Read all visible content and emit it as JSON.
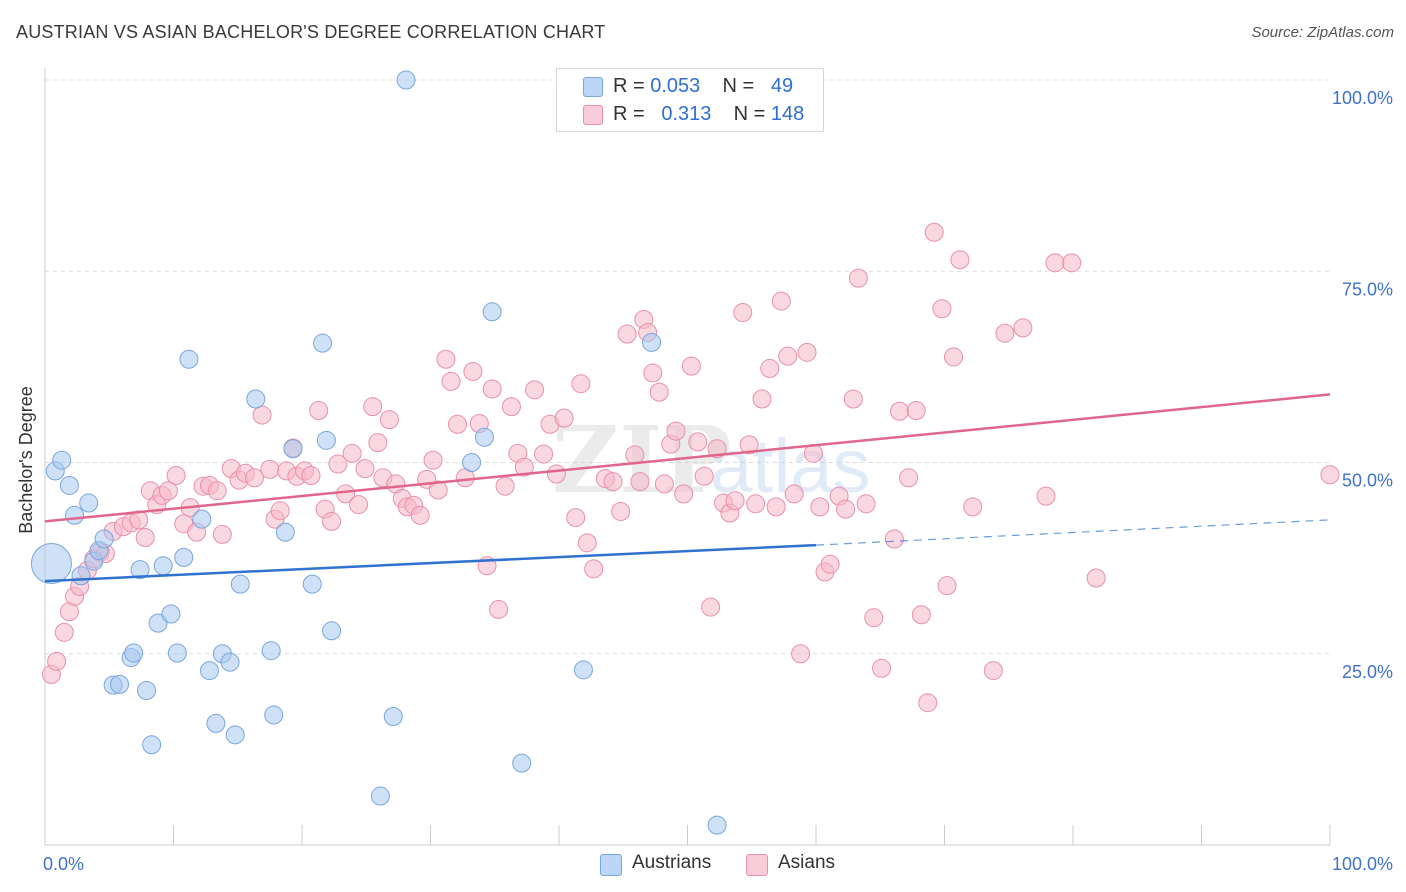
{
  "title": "AUSTRIAN VS ASIAN BACHELOR'S DEGREE CORRELATION CHART",
  "source": "Source: ZipAtlas.com",
  "legend": {
    "rows": [
      {
        "r_label": "R =",
        "r_value": "0.053",
        "n_label": "N =",
        "n_value": "49",
        "color": "#a8c8ef"
      },
      {
        "r_label": "R =",
        "r_value": "0.313",
        "n_label": "N =",
        "n_value": "148",
        "color": "#f5b8cb"
      }
    ]
  },
  "bottom_legend": [
    {
      "label": "Austrians",
      "color": "#a8c8ef"
    },
    {
      "label": "Asians",
      "color": "#f5b8cb"
    }
  ],
  "watermark": {
    "part1": "ZIP",
    "part2": "atlas"
  },
  "chart_data": {
    "type": "scatter",
    "xlabel": "",
    "ylabel": "Bachelor's Degree",
    "xlim": [
      0,
      100
    ],
    "ylim": [
      0,
      100
    ],
    "x_tick_labels": [
      "0.0%",
      "100.0%"
    ],
    "y_ticks": [
      25,
      50,
      75,
      100
    ],
    "y_tick_labels": [
      "25.0%",
      "50.0%",
      "75.0%",
      "100.0%"
    ],
    "grid": true,
    "series": [
      {
        "name": "Austrians",
        "color": "#a8c8ef",
        "stroke": "#7aa6dd",
        "trend": {
          "x0": 0,
          "y0": 34.5,
          "x1": 60,
          "y1": 39.2,
          "dash_to_x": 100,
          "dash_to_y": 42.5,
          "color": "#2f72d0"
        },
        "points": [
          [
            0.5,
            36.8
          ],
          [
            0.8,
            48.9
          ],
          [
            1.3,
            50.3
          ],
          [
            1.9,
            47
          ],
          [
            2.3,
            43.1
          ],
          [
            2.8,
            35.2
          ],
          [
            3.4,
            44.7
          ],
          [
            3.8,
            37.1
          ],
          [
            4.2,
            38.5
          ],
          [
            4.6,
            40
          ],
          [
            5.3,
            20.9
          ],
          [
            5.8,
            21
          ],
          [
            6.7,
            24.5
          ],
          [
            6.9,
            25.1
          ],
          [
            7.4,
            36
          ],
          [
            7.9,
            20.2
          ],
          [
            8.3,
            13.1
          ],
          [
            8.8,
            29
          ],
          [
            9.2,
            36.5
          ],
          [
            9.8,
            30.2
          ],
          [
            10.3,
            25.1
          ],
          [
            10.8,
            37.6
          ],
          [
            11.2,
            63.5
          ],
          [
            12.2,
            42.6
          ],
          [
            12.8,
            22.8
          ],
          [
            13.3,
            15.9
          ],
          [
            13.8,
            25
          ],
          [
            14.4,
            23.9
          ],
          [
            14.8,
            14.4
          ],
          [
            15.2,
            34.1
          ],
          [
            16.4,
            58.3
          ],
          [
            17.6,
            25.4
          ],
          [
            17.8,
            17
          ],
          [
            18.7,
            40.9
          ],
          [
            19.3,
            51.8
          ],
          [
            20.8,
            34.1
          ],
          [
            21.6,
            65.6
          ],
          [
            21.9,
            52.9
          ],
          [
            22.3,
            28
          ],
          [
            26.1,
            6.4
          ],
          [
            27.1,
            16.8
          ],
          [
            28.1,
            100
          ],
          [
            33.2,
            50
          ],
          [
            34.2,
            53.3
          ],
          [
            34.8,
            69.7
          ],
          [
            37.1,
            10.7
          ],
          [
            41.9,
            22.9
          ],
          [
            47.2,
            65.7
          ],
          [
            52.3,
            2.6
          ]
        ]
      },
      {
        "name": "Asians",
        "color": "#f5b8cb",
        "stroke": "#e890ab",
        "trend": {
          "x0": 0,
          "y0": 42.3,
          "x1": 100,
          "y1": 58.9,
          "color": "#e0668c"
        },
        "points": [
          [
            0.5,
            22.3
          ],
          [
            0.9,
            24
          ],
          [
            1.5,
            27.8
          ],
          [
            1.9,
            30.5
          ],
          [
            2.3,
            32.5
          ],
          [
            2.7,
            33.8
          ],
          [
            3.3,
            35.9
          ],
          [
            3.8,
            37.4
          ],
          [
            4.3,
            38.3
          ],
          [
            4.7,
            38.1
          ],
          [
            5.3,
            41
          ],
          [
            6.1,
            41.6
          ],
          [
            6.7,
            42.1
          ],
          [
            7.3,
            42.5
          ],
          [
            7.8,
            40.2
          ],
          [
            8.2,
            46.3
          ],
          [
            8.7,
            44.5
          ],
          [
            9.1,
            45.7
          ],
          [
            9.6,
            46.3
          ],
          [
            10.2,
            48.3
          ],
          [
            10.8,
            42
          ],
          [
            11.3,
            44.1
          ],
          [
            11.8,
            40.9
          ],
          [
            12.3,
            46.9
          ],
          [
            12.8,
            47
          ],
          [
            13.4,
            46.3
          ],
          [
            13.8,
            40.6
          ],
          [
            14.5,
            49.2
          ],
          [
            15.1,
            47.7
          ],
          [
            15.6,
            48.6
          ],
          [
            16.3,
            48
          ],
          [
            16.9,
            56.2
          ],
          [
            17.5,
            49.1
          ],
          [
            17.9,
            42.6
          ],
          [
            18.3,
            43.7
          ],
          [
            18.8,
            48.9
          ],
          [
            19.3,
            51.9
          ],
          [
            19.6,
            48.2
          ],
          [
            20.2,
            48.9
          ],
          [
            20.7,
            48.3
          ],
          [
            21.3,
            56.8
          ],
          [
            21.8,
            43.9
          ],
          [
            22.3,
            42.3
          ],
          [
            22.8,
            49.8
          ],
          [
            23.4,
            45.9
          ],
          [
            23.9,
            51.2
          ],
          [
            24.4,
            44.5
          ],
          [
            24.9,
            49.2
          ],
          [
            25.5,
            57.3
          ],
          [
            25.9,
            52.6
          ],
          [
            26.3,
            48
          ],
          [
            26.8,
            55.6
          ],
          [
            27.3,
            47.2
          ],
          [
            27.8,
            45.3
          ],
          [
            28.2,
            44.2
          ],
          [
            28.7,
            44.4
          ],
          [
            29.2,
            43.1
          ],
          [
            29.7,
            47.8
          ],
          [
            30.2,
            50.3
          ],
          [
            30.6,
            46.4
          ],
          [
            31.2,
            63.5
          ],
          [
            31.6,
            60.6
          ],
          [
            32.1,
            55
          ],
          [
            32.7,
            48
          ],
          [
            33.3,
            61.9
          ],
          [
            33.8,
            55.1
          ],
          [
            34.4,
            36.5
          ],
          [
            34.8,
            59.6
          ],
          [
            35.3,
            30.8
          ],
          [
            35.8,
            46.9
          ],
          [
            36.3,
            57.3
          ],
          [
            36.8,
            51.2
          ],
          [
            37.3,
            49.4
          ],
          [
            38.1,
            59.5
          ],
          [
            38.8,
            51.1
          ],
          [
            39.3,
            55
          ],
          [
            39.8,
            48.5
          ],
          [
            40.4,
            55.8
          ],
          [
            41.3,
            42.8
          ],
          [
            41.7,
            60.3
          ],
          [
            42.2,
            39.5
          ],
          [
            42.7,
            36.1
          ],
          [
            43.6,
            47.9
          ],
          [
            44.2,
            47.5
          ],
          [
            44.8,
            43.6
          ],
          [
            45.3,
            66.8
          ],
          [
            45.9,
            51
          ],
          [
            46.3,
            47.5
          ],
          [
            46.6,
            68.7
          ],
          [
            46.9,
            67
          ],
          [
            47.3,
            61.7
          ],
          [
            47.8,
            59.2
          ],
          [
            48.2,
            47.2
          ],
          [
            48.7,
            52.4
          ],
          [
            49.1,
            54.1
          ],
          [
            49.7,
            45.9
          ],
          [
            50.3,
            62.6
          ],
          [
            50.8,
            52.7
          ],
          [
            51.3,
            48.2
          ],
          [
            51.8,
            31.1
          ],
          [
            52.3,
            51.8
          ],
          [
            52.8,
            44.7
          ],
          [
            53.3,
            43.4
          ],
          [
            53.7,
            45
          ],
          [
            54.3,
            69.6
          ],
          [
            54.8,
            52.3
          ],
          [
            55.3,
            44.6
          ],
          [
            55.8,
            58.3
          ],
          [
            56.4,
            62.3
          ],
          [
            56.9,
            44.2
          ],
          [
            57.3,
            71.1
          ],
          [
            57.8,
            63.9
          ],
          [
            58.3,
            45.9
          ],
          [
            58.8,
            25
          ],
          [
            59.3,
            64.4
          ],
          [
            59.8,
            51.2
          ],
          [
            60.3,
            44.2
          ],
          [
            60.7,
            35.7
          ],
          [
            61.1,
            36.7
          ],
          [
            61.8,
            45.6
          ],
          [
            62.3,
            43.9
          ],
          [
            62.9,
            58.3
          ],
          [
            63.3,
            74.1
          ],
          [
            63.9,
            44.6
          ],
          [
            64.5,
            29.7
          ],
          [
            65.1,
            23.1
          ],
          [
            66.1,
            40
          ],
          [
            66.5,
            56.7
          ],
          [
            67.2,
            48
          ],
          [
            67.8,
            56.8
          ],
          [
            68.2,
            30.1
          ],
          [
            68.7,
            18.6
          ],
          [
            69.2,
            80.1
          ],
          [
            69.8,
            70.1
          ],
          [
            70.2,
            33.9
          ],
          [
            70.7,
            63.8
          ],
          [
            71.2,
            76.5
          ],
          [
            72.2,
            44.2
          ],
          [
            73.8,
            22.8
          ],
          [
            74.7,
            66.9
          ],
          [
            76.1,
            67.6
          ],
          [
            77.9,
            45.6
          ],
          [
            78.6,
            76.1
          ],
          [
            79.9,
            76.1
          ],
          [
            81.8,
            34.9
          ],
          [
            100,
            48.4
          ]
        ]
      }
    ]
  }
}
